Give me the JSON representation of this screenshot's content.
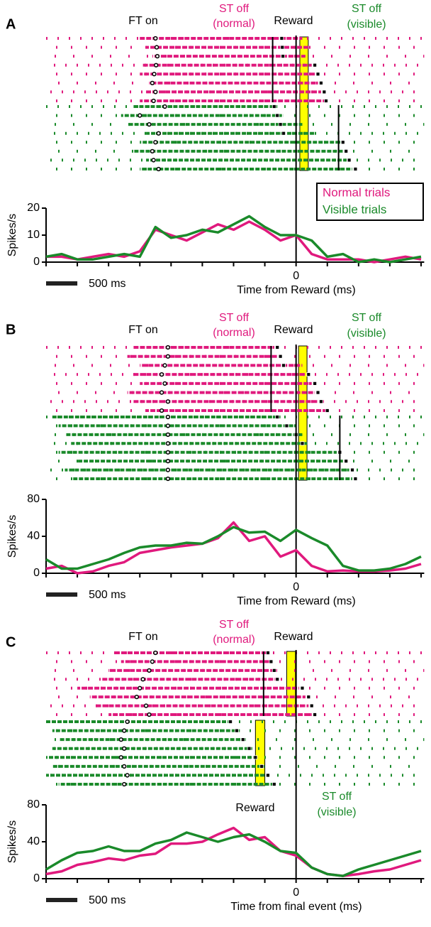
{
  "chart_data": [
    {
      "type": "line",
      "panel": "A",
      "annotations": {
        "ft_on": "FT on",
        "st_off_normal": [
          "ST off",
          "(normal)"
        ],
        "reward": "Reward",
        "st_off_visible": [
          "ST off",
          "(visible)"
        ]
      },
      "xlabel": "Time from Reward (ms)",
      "ylabel": "Spikes/s",
      "xlim": [
        -4000,
        2050
      ],
      "xticks": [
        0
      ],
      "xminorticks": [
        -4000,
        -3500,
        -3000,
        -2500,
        -2000,
        -1500,
        -1000,
        -500,
        0,
        500,
        1000,
        1500,
        2000
      ],
      "ylim": [
        0,
        20
      ],
      "yticks": [
        0,
        10,
        20
      ],
      "scale_bar": {
        "value": 500,
        "label": "500 ms"
      },
      "legend": "upper right",
      "x": [
        -4000,
        -3750,
        -3500,
        -3250,
        -3000,
        -2750,
        -2500,
        -2250,
        -2000,
        -1750,
        -1500,
        -1250,
        -1000,
        -750,
        -500,
        -250,
        0,
        250,
        500,
        750,
        1000,
        1250,
        1500,
        1750,
        2000
      ],
      "series": [
        {
          "name": "Normal trials",
          "color": "#e0197d",
          "values": [
            2,
            2,
            1,
            2,
            3,
            2,
            4,
            12,
            10,
            8,
            11,
            14,
            12,
            15,
            12,
            8,
            10,
            3,
            1,
            1,
            1,
            0,
            1,
            2,
            1
          ]
        },
        {
          "name": "Visible trials",
          "color": "#1a8a2a",
          "values": [
            2,
            3,
            1,
            1,
            2,
            3,
            2,
            13,
            9,
            10,
            12,
            11,
            14,
            17,
            13,
            10,
            10,
            8,
            2,
            3,
            0,
            1,
            0,
            1,
            2
          ]
        }
      ],
      "raster": {
        "window": [
          60,
          195
        ],
        "normal": {
          "st_line": -375,
          "trials": [
            [
              -2250,
              -230,
              -2500,
              100
            ],
            [
              -2230,
              -220,
              -2400,
              200
            ],
            [
              -2220,
              -210,
              -2300,
              150
            ],
            [
              -2240,
              300,
              -2450,
              250
            ],
            [
              -2270,
              350,
              -2500,
              300
            ],
            [
              -2300,
              400,
              -2350,
              350
            ],
            [
              -2250,
              450,
              -2400,
              400
            ],
            [
              -2280,
              480,
              -2500,
              450
            ]
          ]
        },
        "visible": {
          "st_line": 680,
          "trials": [
            [
              -2100,
              -350,
              -2600,
              -300
            ],
            [
              -2500,
              -300,
              -2800,
              -200
            ],
            [
              -2350,
              -250,
              -2700,
              100
            ],
            [
              -2200,
              -200,
              -2400,
              300
            ],
            [
              -2250,
              750,
              -2500,
              700
            ],
            [
              -2300,
              800,
              -2600,
              750
            ],
            [
              -2280,
              850,
              -2400,
              800
            ],
            [
              -2200,
              950,
              -2500,
              900
            ]
          ]
        }
      }
    },
    {
      "type": "line",
      "panel": "B",
      "annotations": {
        "ft_on": "FT on",
        "st_off_normal": [
          "ST off",
          "(normal)"
        ],
        "reward": "Reward",
        "st_off_visible": [
          "ST off",
          "(visible)"
        ]
      },
      "xlabel": "Time from Reward (ms)",
      "ylabel": "Spikes/s",
      "xlim": [
        -4000,
        2050
      ],
      "xticks": [
        0
      ],
      "xminorticks": [
        -4000,
        -3500,
        -3000,
        -2500,
        -2000,
        -1500,
        -1000,
        -500,
        0,
        500,
        1000,
        1500,
        2000
      ],
      "ylim": [
        0,
        80
      ],
      "yticks": [
        0,
        40,
        80
      ],
      "scale_bar": {
        "value": 500,
        "label": "500 ms"
      },
      "x": [
        -4000,
        -3750,
        -3500,
        -3250,
        -3000,
        -2750,
        -2500,
        -2250,
        -2000,
        -1750,
        -1500,
        -1250,
        -1000,
        -750,
        -500,
        -250,
        0,
        250,
        500,
        750,
        1000,
        1250,
        1500,
        1750,
        2000
      ],
      "series": [
        {
          "color": "#e0197d",
          "values": [
            5,
            8,
            0,
            2,
            8,
            12,
            22,
            25,
            28,
            30,
            32,
            38,
            55,
            35,
            40,
            18,
            25,
            8,
            2,
            3,
            2,
            2,
            3,
            5,
            10
          ]
        },
        {
          "color": "#1a8a2a",
          "values": [
            15,
            5,
            5,
            10,
            15,
            22,
            28,
            30,
            30,
            33,
            32,
            40,
            50,
            44,
            45,
            35,
            47,
            38,
            30,
            8,
            3,
            3,
            5,
            10,
            18
          ]
        }
      ],
      "raster": {
        "window": [
          40,
          175
        ],
        "normal": {
          "st_line": -400,
          "trials": [
            [
              -2050,
              -300,
              -2600,
              -350
            ],
            [
              -2050,
              -250,
              -2700,
              -300
            ],
            [
              -2100,
              -200,
              -2500,
              100
            ],
            [
              -2150,
              200,
              -2600,
              150
            ],
            [
              -2100,
              300,
              -2500,
              250
            ],
            [
              -2150,
              350,
              -2700,
              300
            ],
            [
              -2050,
              400,
              -2600,
              350
            ],
            [
              -2150,
              500,
              -2400,
              450
            ]
          ]
        },
        "visible": {
          "st_line": 700,
          "trials": [
            [
              -2050,
              -300,
              -3900,
              -250
            ],
            [
              -2050,
              -150,
              -3800,
              0
            ],
            [
              -2050,
              0,
              -3700,
              100
            ],
            [
              -2050,
              100,
              -3600,
              200
            ],
            [
              -2050,
              700,
              -3800,
              650
            ],
            [
              -2050,
              800,
              -3500,
              750
            ],
            [
              -2050,
              900,
              -3700,
              850
            ],
            [
              -2050,
              950,
              -3600,
              900
            ]
          ]
        }
      }
    },
    {
      "type": "line",
      "panel": "C",
      "annotations": {
        "ft_on": "FT on",
        "st_off_normal": [
          "ST off",
          "(normal)"
        ],
        "reward": "Reward",
        "reward_psth": "Reward",
        "st_off_visible": [
          "ST off",
          "(visible)"
        ]
      },
      "xlabel": "Time from final event (ms)",
      "ylabel": "Spikes/s",
      "xlim": [
        -4000,
        2050
      ],
      "xticks": [
        0
      ],
      "xminorticks": [
        -4000,
        -3500,
        -3000,
        -2500,
        -2000,
        -1500,
        -1000,
        -500,
        0,
        500,
        1000,
        1500,
        2000
      ],
      "ylim": [
        0,
        80
      ],
      "yticks": [
        0,
        40,
        80
      ],
      "scale_bar": {
        "value": 500,
        "label": "500 ms"
      },
      "x": [
        -4000,
        -3750,
        -3500,
        -3250,
        -3000,
        -2750,
        -2500,
        -2250,
        -2000,
        -1750,
        -1500,
        -1250,
        -1000,
        -750,
        -500,
        -250,
        0,
        250,
        500,
        750,
        1000,
        1250,
        1500,
        1750,
        2000
      ],
      "series": [
        {
          "color": "#e0197d",
          "values": [
            5,
            8,
            15,
            18,
            22,
            20,
            25,
            27,
            38,
            38,
            40,
            48,
            55,
            42,
            45,
            30,
            25,
            12,
            5,
            3,
            5,
            8,
            10,
            15,
            20
          ]
        },
        {
          "color": "#1a8a2a",
          "values": [
            10,
            20,
            28,
            30,
            35,
            30,
            30,
            38,
            42,
            50,
            45,
            40,
            45,
            48,
            40,
            30,
            28,
            12,
            5,
            3,
            10,
            15,
            20,
            25,
            30
          ]
        }
      ],
      "raster": {
        "normal": {
          "window": [
            -150,
            -10
          ],
          "st_line": -520,
          "trials": [
            [
              -2250,
              -450,
              -2900,
              -450
            ],
            [
              -2300,
              -400,
              -2800,
              -400
            ],
            [
              -2350,
              -350,
              -3000,
              -350
            ],
            [
              -2450,
              -300,
              -3100,
              -300
            ],
            [
              -2500,
              100,
              -3500,
              50
            ],
            [
              -2550,
              200,
              -3300,
              150
            ],
            [
              -2400,
              250,
              -3200,
              200
            ],
            [
              -2350,
              300,
              -3000,
              250
            ]
          ]
        },
        "visible": {
          "window": [
            -650,
            -500
          ],
          "trials": [
            [
              -2700,
              -1050,
              -4000,
              -1050
            ],
            [
              -2750,
              -950,
              -3900,
              -900
            ],
            [
              -2800,
              -850,
              -3800,
              -800
            ],
            [
              -2750,
              -750,
              -3900,
              -700
            ],
            [
              -2800,
              -650,
              -4000,
              -600
            ],
            [
              -2750,
              -550,
              -3900,
              -500
            ],
            [
              -2700,
              -450,
              -4000,
              -450
            ],
            [
              -2750,
              -350,
              -3800,
              -350
            ]
          ]
        }
      }
    }
  ]
}
